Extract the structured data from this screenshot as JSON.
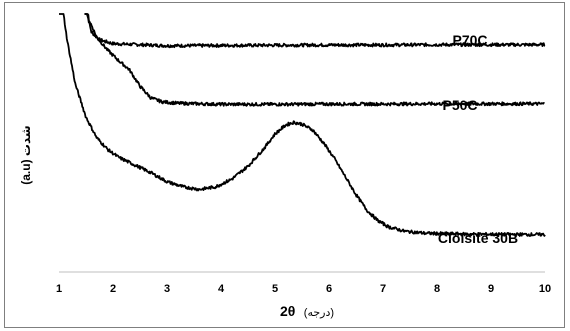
{
  "chart_data": {
    "type": "line",
    "xlabel_main": "2θ",
    "xlabel_unit": "(درجه)",
    "ylabel": "(a.u) شدت",
    "xlim": [
      1,
      10
    ],
    "x_ticks": [
      "1",
      "2",
      "3",
      "4",
      "5",
      "6",
      "7",
      "8",
      "9",
      "10"
    ],
    "y_ticks_shown": false,
    "grid": false,
    "legend": "none",
    "series": [
      {
        "name": "P70C",
        "color": "#000000",
        "points": [
          [
            1.48,
            1.12
          ],
          [
            1.52,
            1.0
          ],
          [
            1.6,
            0.93
          ],
          [
            1.75,
            0.9
          ],
          [
            2.0,
            0.885
          ],
          [
            3.0,
            0.877
          ],
          [
            4.0,
            0.878
          ],
          [
            5.0,
            0.879
          ],
          [
            6.0,
            0.88
          ],
          [
            7.0,
            0.88
          ],
          [
            8.0,
            0.881
          ],
          [
            9.0,
            0.881
          ],
          [
            10.0,
            0.881
          ]
        ]
      },
      {
        "name": "P50C",
        "color": "#000000",
        "points": [
          [
            1.47,
            1.12
          ],
          [
            1.55,
            0.98
          ],
          [
            1.7,
            0.91
          ],
          [
            1.9,
            0.86
          ],
          [
            2.1,
            0.82
          ],
          [
            2.3,
            0.785
          ],
          [
            2.5,
            0.72
          ],
          [
            2.7,
            0.675
          ],
          [
            2.9,
            0.66
          ],
          [
            3.2,
            0.654
          ],
          [
            4.0,
            0.65
          ],
          [
            5.0,
            0.65
          ],
          [
            6.0,
            0.651
          ],
          [
            7.0,
            0.651
          ],
          [
            8.0,
            0.652
          ],
          [
            9.0,
            0.652
          ],
          [
            10.0,
            0.652
          ]
        ]
      },
      {
        "name": "Cloisite 30B",
        "color": "#000000",
        "points": [
          [
            1.0,
            1.12
          ],
          [
            1.05,
            1.05
          ],
          [
            1.15,
            0.9
          ],
          [
            1.3,
            0.73
          ],
          [
            1.5,
            0.6
          ],
          [
            1.7,
            0.52
          ],
          [
            1.9,
            0.475
          ],
          [
            2.1,
            0.445
          ],
          [
            2.4,
            0.415
          ],
          [
            2.7,
            0.385
          ],
          [
            3.0,
            0.35
          ],
          [
            3.3,
            0.33
          ],
          [
            3.6,
            0.32
          ],
          [
            3.9,
            0.33
          ],
          [
            4.2,
            0.36
          ],
          [
            4.5,
            0.41
          ],
          [
            4.8,
            0.48
          ],
          [
            5.0,
            0.535
          ],
          [
            5.2,
            0.57
          ],
          [
            5.35,
            0.58
          ],
          [
            5.5,
            0.573
          ],
          [
            5.7,
            0.55
          ],
          [
            5.9,
            0.5
          ],
          [
            6.1,
            0.44
          ],
          [
            6.3,
            0.37
          ],
          [
            6.5,
            0.3
          ],
          [
            6.7,
            0.24
          ],
          [
            6.9,
            0.2
          ],
          [
            7.1,
            0.175
          ],
          [
            7.4,
            0.158
          ],
          [
            7.8,
            0.15
          ],
          [
            8.5,
            0.147
          ],
          [
            9.0,
            0.146
          ],
          [
            10.0,
            0.145
          ]
        ]
      }
    ]
  }
}
